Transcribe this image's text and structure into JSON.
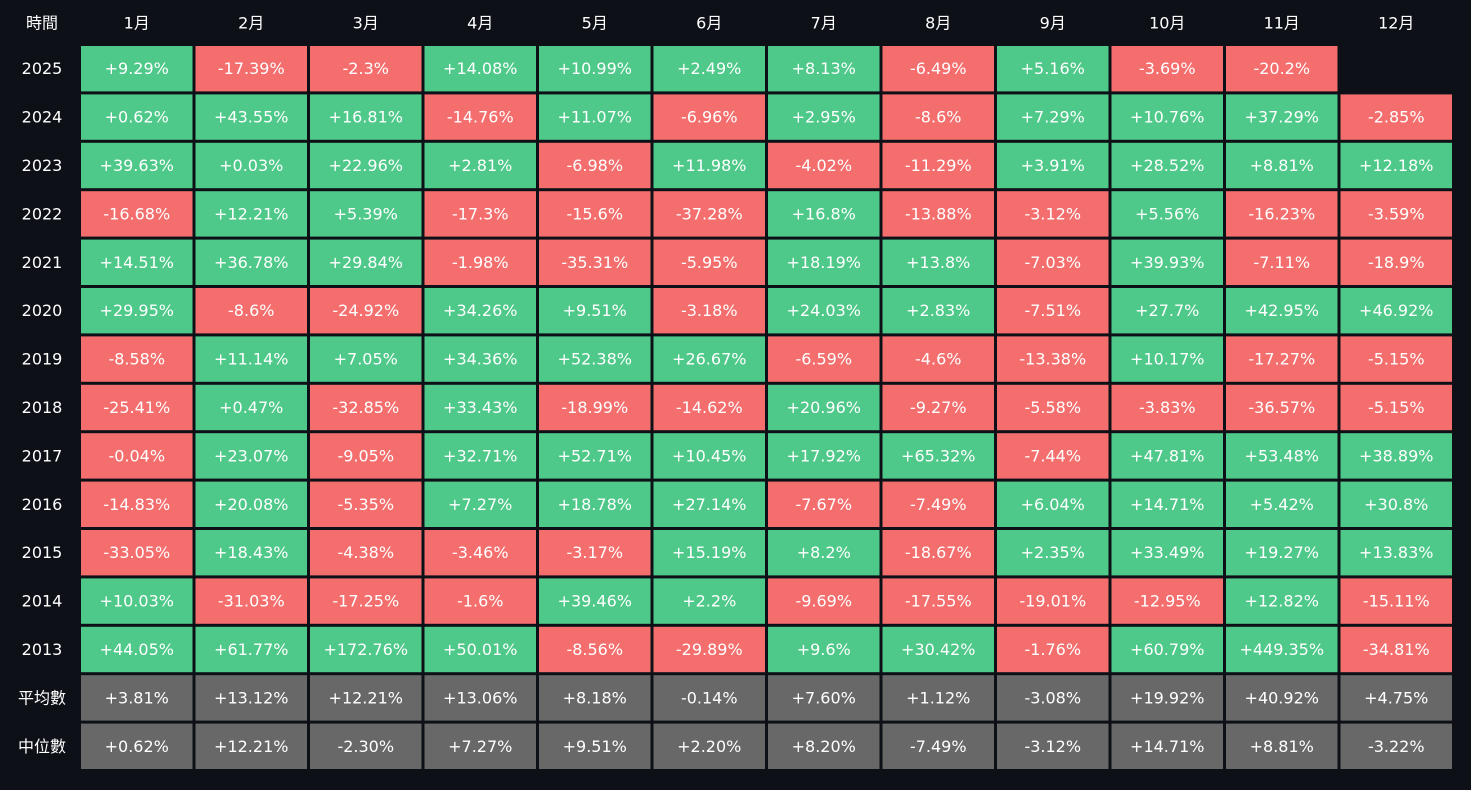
{
  "chart_data": {
    "type": "heatmap",
    "corner_label": "時間",
    "columns": [
      "1月",
      "2月",
      "3月",
      "4月",
      "5月",
      "6月",
      "7月",
      "8月",
      "9月",
      "10月",
      "11月",
      "12月"
    ],
    "rows": [
      {
        "label": "2025",
        "values": [
          "+9.29%",
          "-17.39%",
          "-2.3%",
          "+14.08%",
          "+10.99%",
          "+2.49%",
          "+8.13%",
          "-6.49%",
          "+5.16%",
          "-3.69%",
          "-20.2%",
          null
        ]
      },
      {
        "label": "2024",
        "values": [
          "+0.62%",
          "+43.55%",
          "+16.81%",
          "-14.76%",
          "+11.07%",
          "-6.96%",
          "+2.95%",
          "-8.6%",
          "+7.29%",
          "+10.76%",
          "+37.29%",
          "-2.85%"
        ]
      },
      {
        "label": "2023",
        "values": [
          "+39.63%",
          "+0.03%",
          "+22.96%",
          "+2.81%",
          "-6.98%",
          "+11.98%",
          "-4.02%",
          "-11.29%",
          "+3.91%",
          "+28.52%",
          "+8.81%",
          "+12.18%"
        ]
      },
      {
        "label": "2022",
        "values": [
          "-16.68%",
          "+12.21%",
          "+5.39%",
          "-17.3%",
          "-15.6%",
          "-37.28%",
          "+16.8%",
          "-13.88%",
          "-3.12%",
          "+5.56%",
          "-16.23%",
          "-3.59%"
        ]
      },
      {
        "label": "2021",
        "values": [
          "+14.51%",
          "+36.78%",
          "+29.84%",
          "-1.98%",
          "-35.31%",
          "-5.95%",
          "+18.19%",
          "+13.8%",
          "-7.03%",
          "+39.93%",
          "-7.11%",
          "-18.9%"
        ]
      },
      {
        "label": "2020",
        "values": [
          "+29.95%",
          "-8.6%",
          "-24.92%",
          "+34.26%",
          "+9.51%",
          "-3.18%",
          "+24.03%",
          "+2.83%",
          "-7.51%",
          "+27.7%",
          "+42.95%",
          "+46.92%"
        ]
      },
      {
        "label": "2019",
        "values": [
          "-8.58%",
          "+11.14%",
          "+7.05%",
          "+34.36%",
          "+52.38%",
          "+26.67%",
          "-6.59%",
          "-4.6%",
          "-13.38%",
          "+10.17%",
          "-17.27%",
          "-5.15%"
        ]
      },
      {
        "label": "2018",
        "values": [
          "-25.41%",
          "+0.47%",
          "-32.85%",
          "+33.43%",
          "-18.99%",
          "-14.62%",
          "+20.96%",
          "-9.27%",
          "-5.58%",
          "-3.83%",
          "-36.57%",
          "-5.15%"
        ]
      },
      {
        "label": "2017",
        "values": [
          "-0.04%",
          "+23.07%",
          "-9.05%",
          "+32.71%",
          "+52.71%",
          "+10.45%",
          "+17.92%",
          "+65.32%",
          "-7.44%",
          "+47.81%",
          "+53.48%",
          "+38.89%"
        ]
      },
      {
        "label": "2016",
        "values": [
          "-14.83%",
          "+20.08%",
          "-5.35%",
          "+7.27%",
          "+18.78%",
          "+27.14%",
          "-7.67%",
          "-7.49%",
          "+6.04%",
          "+14.71%",
          "+5.42%",
          "+30.8%"
        ]
      },
      {
        "label": "2015",
        "values": [
          "-33.05%",
          "+18.43%",
          "-4.38%",
          "-3.46%",
          "-3.17%",
          "+15.19%",
          "+8.2%",
          "-18.67%",
          "+2.35%",
          "+33.49%",
          "+19.27%",
          "+13.83%"
        ]
      },
      {
        "label": "2014",
        "values": [
          "+10.03%",
          "-31.03%",
          "-17.25%",
          "-1.6%",
          "+39.46%",
          "+2.2%",
          "-9.69%",
          "-17.55%",
          "-19.01%",
          "-12.95%",
          "+12.82%",
          "-15.11%"
        ]
      },
      {
        "label": "2013",
        "values": [
          "+44.05%",
          "+61.77%",
          "+172.76%",
          "+50.01%",
          "-8.56%",
          "-29.89%",
          "+9.6%",
          "+30.42%",
          "-1.76%",
          "+60.79%",
          "+449.35%",
          "-34.81%"
        ]
      }
    ],
    "summary_rows": [
      {
        "label": "平均數",
        "values": [
          "+3.81%",
          "+13.12%",
          "+12.21%",
          "+13.06%",
          "+8.18%",
          "-0.14%",
          "+7.60%",
          "+1.12%",
          "-3.08%",
          "+19.92%",
          "+40.92%",
          "+4.75%"
        ]
      },
      {
        "label": "中位數",
        "values": [
          "+0.62%",
          "+12.21%",
          "-2.30%",
          "+7.27%",
          "+9.51%",
          "+2.20%",
          "+8.20%",
          "-7.49%",
          "-3.12%",
          "+14.71%",
          "+8.81%",
          "-3.22%"
        ]
      }
    ],
    "colors": {
      "background": "#0d1117",
      "positive": "#4ec989",
      "negative": "#f56e6e",
      "summary": "#686868",
      "text": "#ffffff"
    }
  }
}
